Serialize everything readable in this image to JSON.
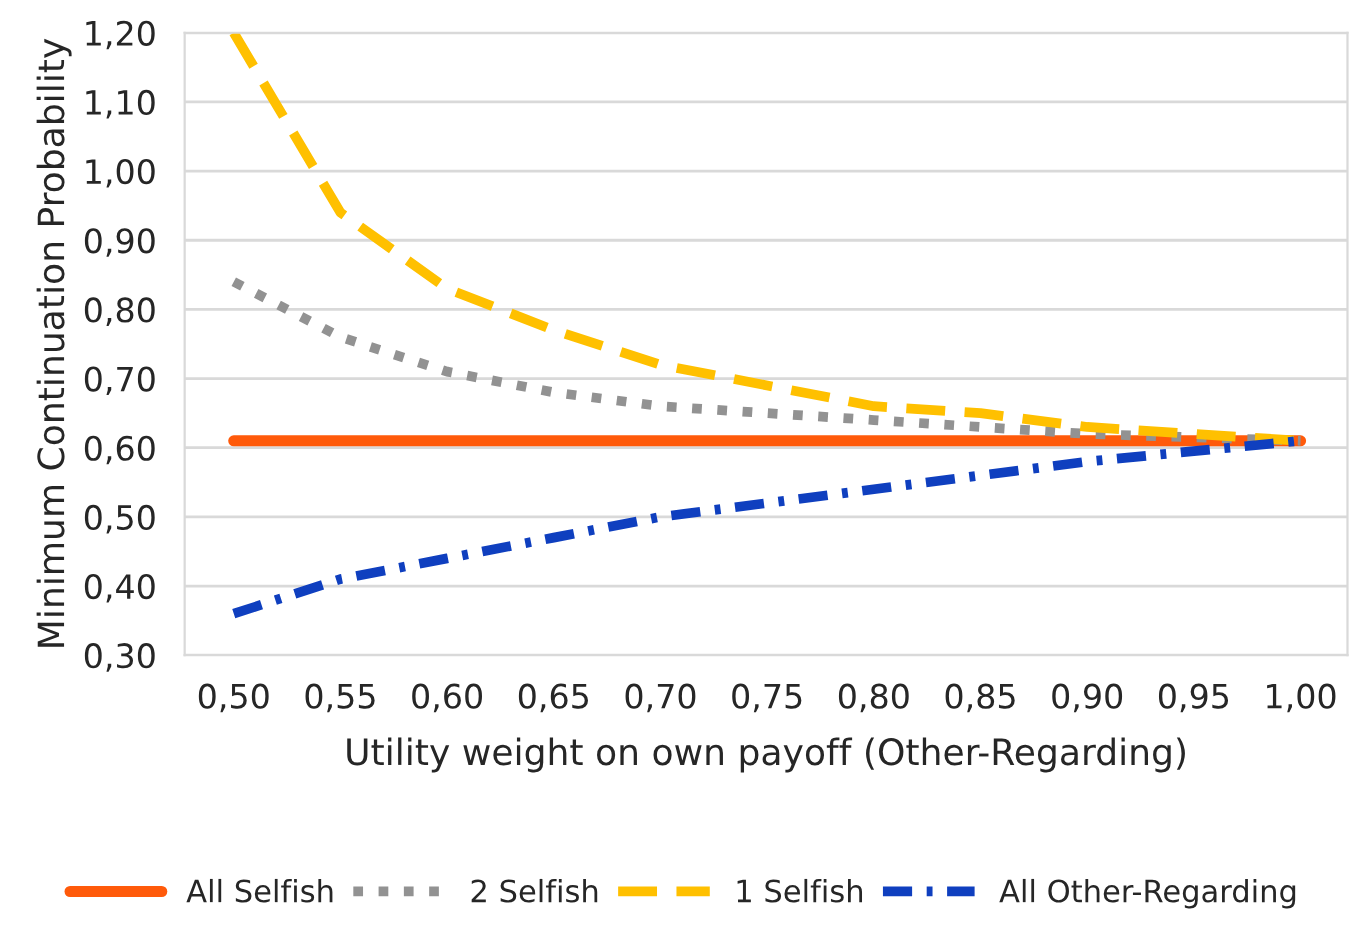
{
  "chart_data": {
    "type": "line",
    "xlabel": "Utility weight on own payoff (Other-Regarding)",
    "ylabel": "Minimum Continuation Probability",
    "x": [
      0.5,
      0.55,
      0.6,
      0.65,
      0.7,
      0.75,
      0.8,
      0.85,
      0.9,
      0.95,
      1.0
    ],
    "series": [
      {
        "name": "All Selfish",
        "color": "#ff5a0a",
        "line_style": "solid",
        "values": [
          0.61,
          0.61,
          0.61,
          0.61,
          0.61,
          0.61,
          0.61,
          0.61,
          0.61,
          0.61,
          0.61
        ]
      },
      {
        "name": "2 Selfish",
        "color": "#929292",
        "line_style": "dotted",
        "values": [
          0.84,
          0.76,
          0.71,
          0.68,
          0.66,
          0.65,
          0.64,
          0.63,
          0.62,
          0.615,
          0.61
        ]
      },
      {
        "name": "1 Selfish",
        "color": "#ffc000",
        "line_style": "dashed",
        "values": [
          1.2,
          0.94,
          0.83,
          0.77,
          0.72,
          0.69,
          0.66,
          0.65,
          0.63,
          0.62,
          0.61
        ]
      },
      {
        "name": "All Other-Regarding",
        "color": "#0f3fbf",
        "line_style": "dashdot",
        "values": [
          0.36,
          0.41,
          0.44,
          0.47,
          0.5,
          0.52,
          0.54,
          0.56,
          0.58,
          0.595,
          0.61
        ]
      }
    ],
    "xlim": [
      0.477,
      1.022
    ],
    "xticks": [
      {
        "value": 0.5,
        "label": "0,50"
      },
      {
        "value": 0.55,
        "label": "0,55"
      },
      {
        "value": 0.6,
        "label": "0,60"
      },
      {
        "value": 0.65,
        "label": "0,65"
      },
      {
        "value": 0.7,
        "label": "0,70"
      },
      {
        "value": 0.75,
        "label": "0,75"
      },
      {
        "value": 0.8,
        "label": "0,80"
      },
      {
        "value": 0.85,
        "label": "0,85"
      },
      {
        "value": 0.9,
        "label": "0,90"
      },
      {
        "value": 0.95,
        "label": "0,95"
      },
      {
        "value": 1.0,
        "label": "1,00"
      }
    ],
    "ylim": [
      0.3,
      1.2
    ],
    "yticks": [
      {
        "value": 0.3,
        "label": "0,30"
      },
      {
        "value": 0.4,
        "label": "0,40"
      },
      {
        "value": 0.5,
        "label": "0,50"
      },
      {
        "value": 0.6,
        "label": "0,60"
      },
      {
        "value": 0.7,
        "label": "0,70"
      },
      {
        "value": 0.8,
        "label": "0,80"
      },
      {
        "value": 0.9,
        "label": "0,90"
      },
      {
        "value": 1.0,
        "label": "1,00"
      },
      {
        "value": 1.1,
        "label": "1,10"
      },
      {
        "value": 1.2,
        "label": "1,20"
      }
    ],
    "grid": "y",
    "legend": "bottom",
    "marker": "none"
  }
}
